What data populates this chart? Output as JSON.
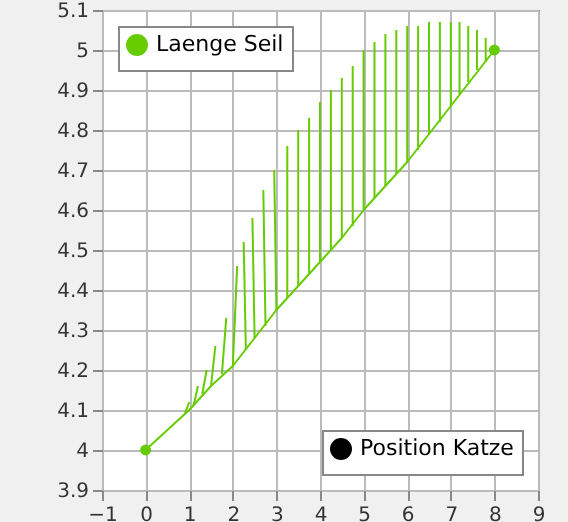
{
  "chart_data": {
    "type": "line",
    "xlim": [
      -1,
      9
    ],
    "ylim": [
      3.9,
      5.1
    ],
    "xticks": [
      -1,
      0,
      1,
      2,
      3,
      4,
      5,
      6,
      7,
      8,
      9
    ],
    "yticks": [
      3.9,
      4,
      4.1,
      4.2,
      4.3,
      4.4,
      4.5,
      4.6,
      4.7,
      4.8,
      4.9,
      5,
      5.1
    ],
    "grid": true,
    "legend": [
      "top left",
      "bottom right"
    ],
    "series": [
      {
        "color": "#66cc00",
        "x": [
          0,
          0.5,
          1,
          1.5,
          2,
          2.5,
          3,
          3.5,
          4,
          4.5,
          5,
          5.5,
          6,
          6.5,
          7,
          7.5,
          8
        ],
        "values": [
          4,
          4.05,
          4.1,
          4.16,
          4.21,
          4.28,
          4.35,
          4.41,
          4.47,
          4.53,
          4.6,
          4.66,
          4.72,
          4.79,
          4.86,
          4.93,
          5
        ]
      },
      {
        "name": "Laenge Seil",
        "color": "#66cc00",
        "x": [
          0.9,
          1.0,
          null,
          1.1,
          1.2,
          null,
          1.3,
          1.4,
          null,
          1.5,
          1.6,
          null,
          1.75,
          1.85,
          null,
          2.0,
          2.1,
          null,
          2.3,
          2.25,
          null,
          2.5,
          2.45,
          null,
          2.75,
          2.7,
          null,
          3.0,
          2.95,
          null,
          3.25,
          3.25,
          null,
          3.5,
          3.5,
          null,
          3.75,
          3.75,
          null,
          4.0,
          4.0,
          null,
          4.25,
          4.25,
          null,
          4.5,
          4.5,
          null,
          4.75,
          4.75,
          null,
          5.0,
          5.0,
          null,
          5.25,
          5.25,
          null,
          5.5,
          5.5,
          null,
          5.75,
          5.75,
          null,
          6.0,
          6.0,
          null,
          6.25,
          6.25,
          null,
          6.5,
          6.5,
          null,
          6.75,
          6.75,
          null,
          7.0,
          7.0,
          null,
          7.2,
          7.2,
          null,
          7.4,
          7.4,
          null,
          7.6,
          7.6,
          null,
          7.8,
          7.8
        ],
        "values": [
          4.09,
          4.12,
          null,
          4.11,
          4.16,
          null,
          4.14,
          4.2,
          null,
          4.16,
          4.26,
          null,
          4.19,
          4.33,
          null,
          4.21,
          4.46,
          null,
          4.25,
          4.52,
          null,
          4.28,
          4.58,
          null,
          4.31,
          4.65,
          null,
          4.35,
          4.7,
          null,
          4.38,
          4.76,
          null,
          4.41,
          4.8,
          null,
          4.44,
          4.83,
          null,
          4.47,
          4.87,
          null,
          4.5,
          4.9,
          null,
          4.53,
          4.93,
          null,
          4.56,
          4.96,
          null,
          4.6,
          5.0,
          null,
          4.63,
          5.02,
          null,
          4.66,
          5.04,
          null,
          4.69,
          5.05,
          null,
          4.72,
          5.06,
          null,
          4.75,
          5.06,
          null,
          4.79,
          5.07,
          null,
          4.82,
          5.07,
          null,
          4.86,
          5.07,
          null,
          4.89,
          5.07,
          null,
          4.92,
          5.06,
          null,
          4.95,
          5.05,
          null,
          4.97,
          5.03
        ]
      },
      {
        "type": "scatter",
        "color": "#66cc00",
        "x": [
          0,
          8
        ],
        "values": [
          4,
          5
        ]
      },
      {
        "type": "scatter",
        "name": "Position Katze",
        "color": "#000000"
      }
    ]
  }
}
